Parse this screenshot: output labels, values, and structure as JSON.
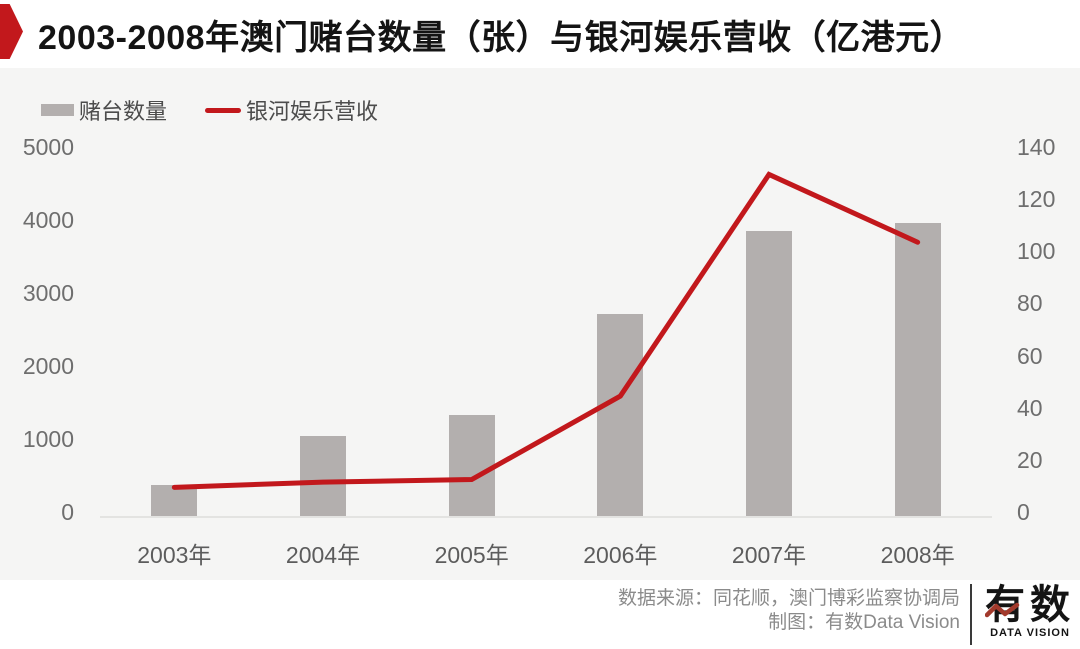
{
  "title": {
    "text": "2003-2008年澳门赌台数量（张）与银河娱乐营收（亿港元）"
  },
  "colors": {
    "accent_red": "#c2181c",
    "bar_gray": "#b3afae",
    "band_bg": "#f5f5f4",
    "axis_text": "#6e6e6e",
    "footer_text": "#8b8b8b",
    "logo_zigzag_red": "#a23a2c"
  },
  "legend": [
    {
      "label": "赌台数量",
      "type": "bar"
    },
    {
      "label": "银河娱乐营收",
      "type": "line"
    }
  ],
  "chart_data": {
    "type": "bar+line",
    "title": "2003-2008年澳门赌台数量（张）与银河娱乐营收（亿港元）",
    "categories": [
      "2003年",
      "2004年",
      "2005年",
      "2006年",
      "2007年",
      "2008年"
    ],
    "series": [
      {
        "name": "赌台数量",
        "type": "bar",
        "axis": "left",
        "unit": "张",
        "values": [
          424,
          1092,
          1388,
          2762,
          3900,
          4017
        ]
      },
      {
        "name": "银河娱乐营收",
        "type": "line",
        "axis": "right",
        "unit": "亿港元",
        "values": [
          11,
          13,
          14,
          46,
          131,
          105
        ]
      }
    ],
    "left_axis": {
      "min": 0,
      "max": 5000,
      "step": 1000,
      "ticks": [
        0,
        1000,
        2000,
        3000,
        4000,
        5000
      ]
    },
    "right_axis": {
      "min": 0,
      "max": 140,
      "step": 20,
      "ticks": [
        0,
        20,
        40,
        60,
        80,
        100,
        120,
        140
      ]
    },
    "grid": false,
    "legend_position": "top-left"
  },
  "footer": {
    "source_line": "数据来源：同花顺，澳门博彩监察协调局",
    "credit_line": "制图：有数Data Vision",
    "logo_cn": "有数",
    "logo_en": "DATA VISION"
  }
}
